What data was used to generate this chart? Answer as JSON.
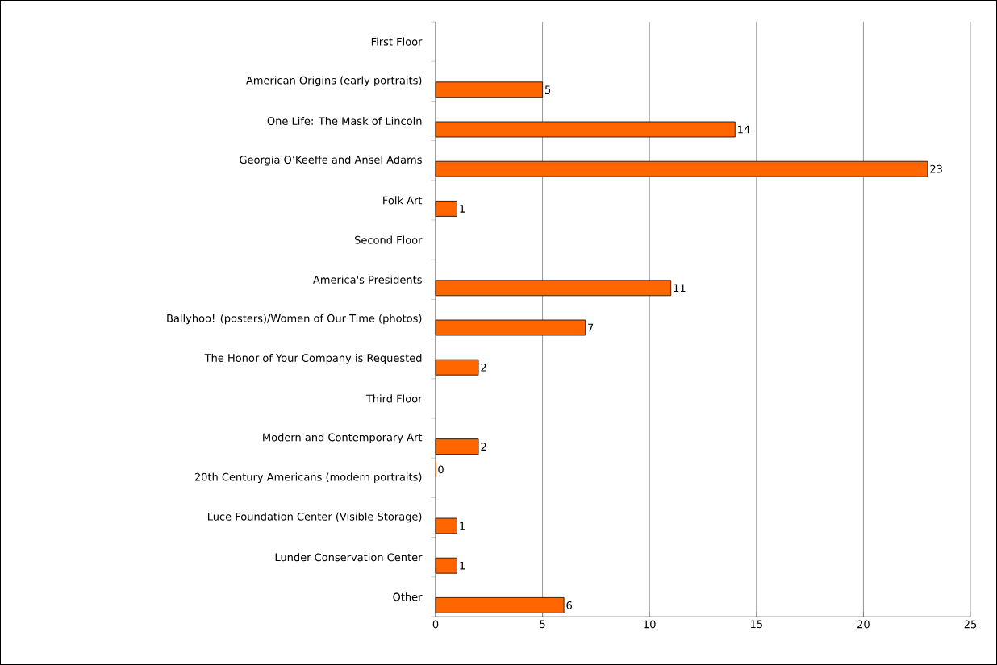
{
  "chart_data": {
    "type": "bar",
    "orientation": "horizontal",
    "categories": [
      "First Floor",
      "American Origins (early portraits)",
      "One Life: The Mask of Lincoln",
      "Georgia O’Keeffe and Ansel Adams",
      "Folk Art",
      "Second Floor",
      "America's Presidents",
      "Ballyhoo! (posters)/Women of Our Time (photos)",
      "The Honor of Your Company is Requested",
      "Third Floor",
      "Modern and Contemporary Art",
      "20th Century Americans (modern portraits)",
      "Luce Foundation Center (Visible Storage)",
      "Lunder Conservation Center",
      "Other"
    ],
    "values": [
      null,
      5,
      14,
      23,
      1,
      null,
      11,
      7,
      2,
      null,
      2,
      0,
      1,
      1,
      6
    ],
    "color": "#ff6600",
    "xlim": [
      0,
      25
    ],
    "xticks": [
      0,
      5,
      10,
      15,
      20,
      25
    ],
    "grid": "x",
    "data_labels": true
  }
}
